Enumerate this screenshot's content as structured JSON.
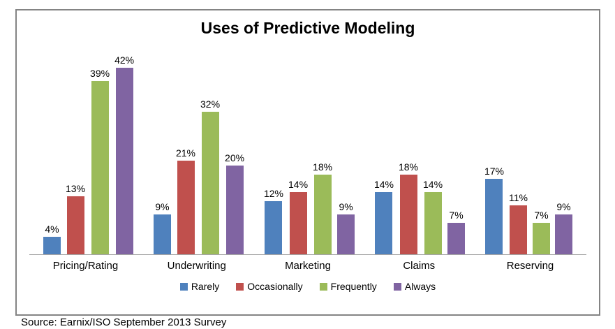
{
  "chart_data": {
    "type": "bar",
    "title": "Uses of Predictive Modeling",
    "categories": [
      "Pricing/Rating",
      "Underwriting",
      "Marketing",
      "Claims",
      "Reserving"
    ],
    "series": [
      {
        "name": "Rarely",
        "color": "#4F81BD",
        "values": [
          4,
          9,
          12,
          14,
          17
        ]
      },
      {
        "name": "Occasionally",
        "color": "#C0504D",
        "values": [
          13,
          21,
          14,
          18,
          11
        ]
      },
      {
        "name": "Frequently",
        "color": "#9BBB59",
        "values": [
          39,
          32,
          18,
          14,
          7
        ]
      },
      {
        "name": "Always",
        "color": "#8064A2",
        "values": [
          42,
          20,
          9,
          7,
          9
        ]
      }
    ],
    "value_suffix": "%",
    "data_labels": "outside-end",
    "xlabel": "",
    "ylabel": "",
    "ylim": [
      0,
      45
    ],
    "grid": false,
    "y_axis_visible": false,
    "legend_position": "bottom",
    "frame_border_color": "#848484",
    "axis_line_color": "#A6A6A6",
    "source": "Source: Earnix/ISO September 2013 Survey"
  }
}
